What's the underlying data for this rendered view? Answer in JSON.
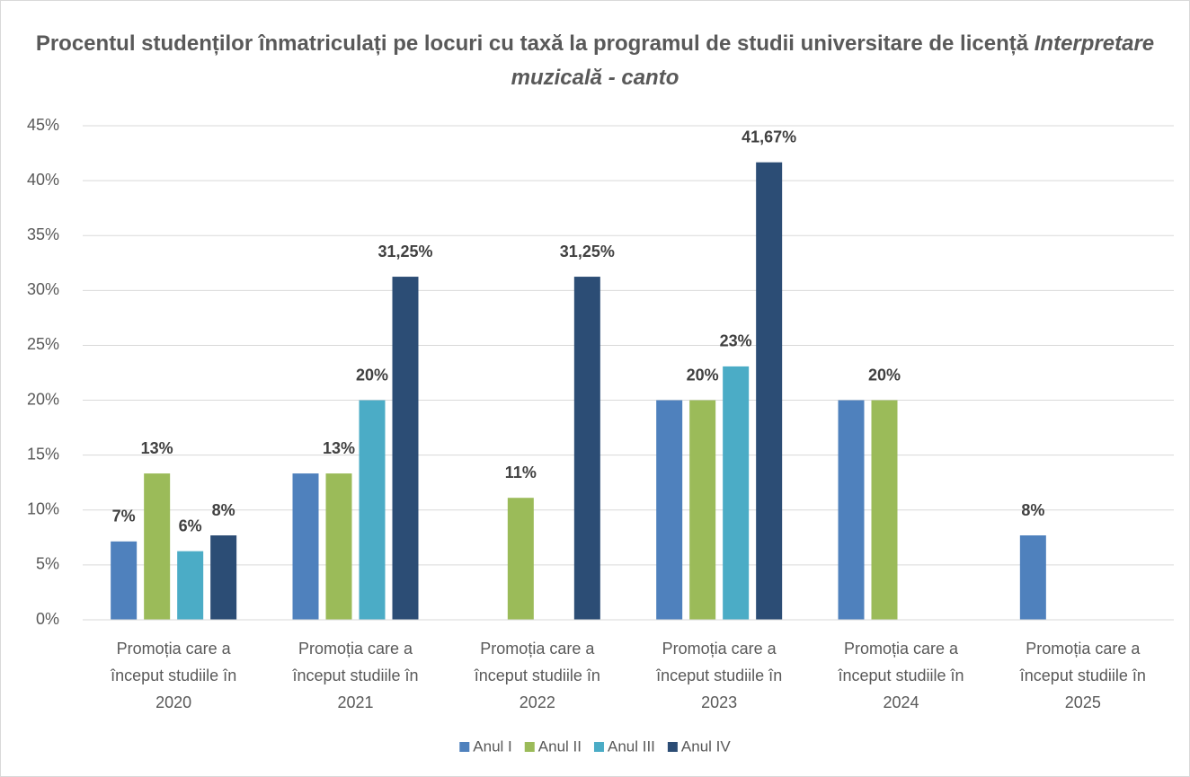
{
  "chart_data": {
    "type": "bar",
    "title": "Procentul studenților înmatriculați pe locuri cu taxă la programul de studii universitare de licență",
    "title_emphasis": "Interpretare muzicală - canto",
    "categories": [
      "Promoția care a început studiile în 2020",
      "Promoția care a început studiile în 2021",
      "Promoția care a început studiile în 2022",
      "Promoția care a început studiile în 2023",
      "Promoția care a început studiile în 2024",
      "Promoția care a început studiile în 2025"
    ],
    "series": [
      {
        "name": "Anul I",
        "color": "#4f81bd",
        "values": [
          7.14,
          13.33,
          null,
          20,
          20,
          7.69
        ],
        "value_labels": [
          "7%",
          null,
          null,
          null,
          null,
          "8%"
        ]
      },
      {
        "name": "Anul II",
        "color": "#9bbb59",
        "values": [
          13.33,
          13.33,
          11.11,
          20,
          20,
          null
        ],
        "value_labels": [
          "13%",
          "13%",
          "11%",
          "20%",
          "20%",
          null
        ]
      },
      {
        "name": "Anul III",
        "color": "#4bacc6",
        "values": [
          6.25,
          20,
          null,
          23.08,
          null,
          null
        ],
        "value_labels": [
          "6%",
          "20%",
          null,
          "23%",
          null,
          null
        ]
      },
      {
        "name": "Anul IV",
        "color": "#2c4d75",
        "values": [
          7.69,
          31.25,
          31.25,
          41.67,
          null,
          null
        ],
        "value_labels": [
          "8%",
          "31,25%",
          "31,25%",
          "41,67%",
          null,
          null
        ]
      }
    ],
    "ylim": [
      0,
      45
    ],
    "yticks": [
      {
        "value": 0,
        "label": "0%"
      },
      {
        "value": 5,
        "label": "5%"
      },
      {
        "value": 10,
        "label": "10%"
      },
      {
        "value": 15,
        "label": "15%"
      },
      {
        "value": 20,
        "label": "20%"
      },
      {
        "value": 25,
        "label": "25%"
      },
      {
        "value": 30,
        "label": "30%"
      },
      {
        "value": 35,
        "label": "35%"
      },
      {
        "value": 40,
        "label": "40%"
      },
      {
        "value": 45,
        "label": "45%"
      }
    ],
    "grid": true,
    "legend": "bottom"
  }
}
